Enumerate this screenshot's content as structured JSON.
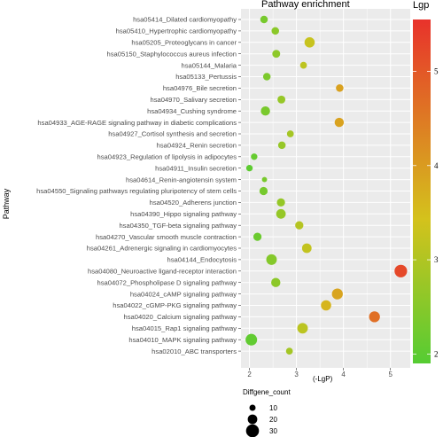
{
  "chart_data": {
    "type": "scatter",
    "title": "Pathway enrichment",
    "xlabel": "(-LgP)",
    "ylabel": "Pathway",
    "xlim": [
      1.82,
      5.42
    ],
    "xticks": [
      2,
      3,
      4,
      5
    ],
    "grid": true,
    "color_legend": {
      "title": "Lgp",
      "min": 1.9,
      "max": 5.55,
      "ticks": [
        2,
        3,
        4,
        5
      ],
      "low_color": "#55cc33",
      "mid_color": "#d4c21c",
      "high_color": "#e8322b"
    },
    "size_legend": {
      "title": "Diffgene_count",
      "values": [
        10,
        20,
        30
      ]
    },
    "categories": [
      "hsa05414_Dilated cardiomyopathy",
      "hsa05410_Hypertrophic cardiomyopathy",
      "hsa05205_Proteoglycans in cancer",
      "hsa05150_Staphylococcus aureus infection",
      "hsa05144_Malaria",
      "hsa05133_Pertussis",
      "hsa04976_Bile secretion",
      "hsa04970_Salivary secretion",
      "hsa04934_Cushing syndrome",
      "hsa04933_AGE-RAGE signaling pathway in diabetic complications",
      "hsa04927_Cortisol synthesis and secretion",
      "hsa04924_Renin secretion",
      "hsa04923_Regulation of lipolysis in adipocytes",
      "hsa04911_Insulin secretion",
      "hsa04614_Renin-angiotensin system",
      "hsa04550_Signaling pathways regulating pluripotency of stem cells",
      "hsa04520_Adherens junction",
      "hsa04390_Hippo signaling pathway",
      "hsa04350_TGF-beta signaling pathway",
      "hsa04270_Vascular smooth muscle contraction",
      "hsa04261_Adrenergic signaling in cardiomyocytes",
      "hsa04144_Endocytosis",
      "hsa04080_Neuroactive ligand-receptor interaction",
      "hsa04072_Phospholipase D signaling pathway",
      "hsa04024_cAMP signaling pathway",
      "hsa04022_cGMP-PKG signaling pathway",
      "hsa04020_Calcium signaling pathway",
      "hsa04015_Rap1 signaling pathway",
      "hsa04010_MAPK signaling pathway",
      "hsa02010_ABC transporters"
    ],
    "x": [
      2.31,
      2.55,
      3.28,
      2.57,
      3.15,
      2.37,
      3.92,
      2.68,
      2.34,
      3.91,
      2.87,
      2.69,
      2.1,
      2.0,
      2.32,
      2.3,
      2.67,
      2.67,
      3.06,
      2.17,
      3.22,
      2.47,
      5.22,
      2.56,
      3.87,
      3.63,
      4.66,
      3.13,
      2.04,
      2.85
    ],
    "counts": [
      14,
      14,
      22,
      15,
      12,
      14,
      14,
      15,
      19,
      19,
      12,
      14,
      11,
      11,
      7,
      16,
      16,
      20,
      16,
      16,
      20,
      23,
      29,
      19,
      24,
      22,
      24,
      23,
      26,
      12
    ]
  }
}
